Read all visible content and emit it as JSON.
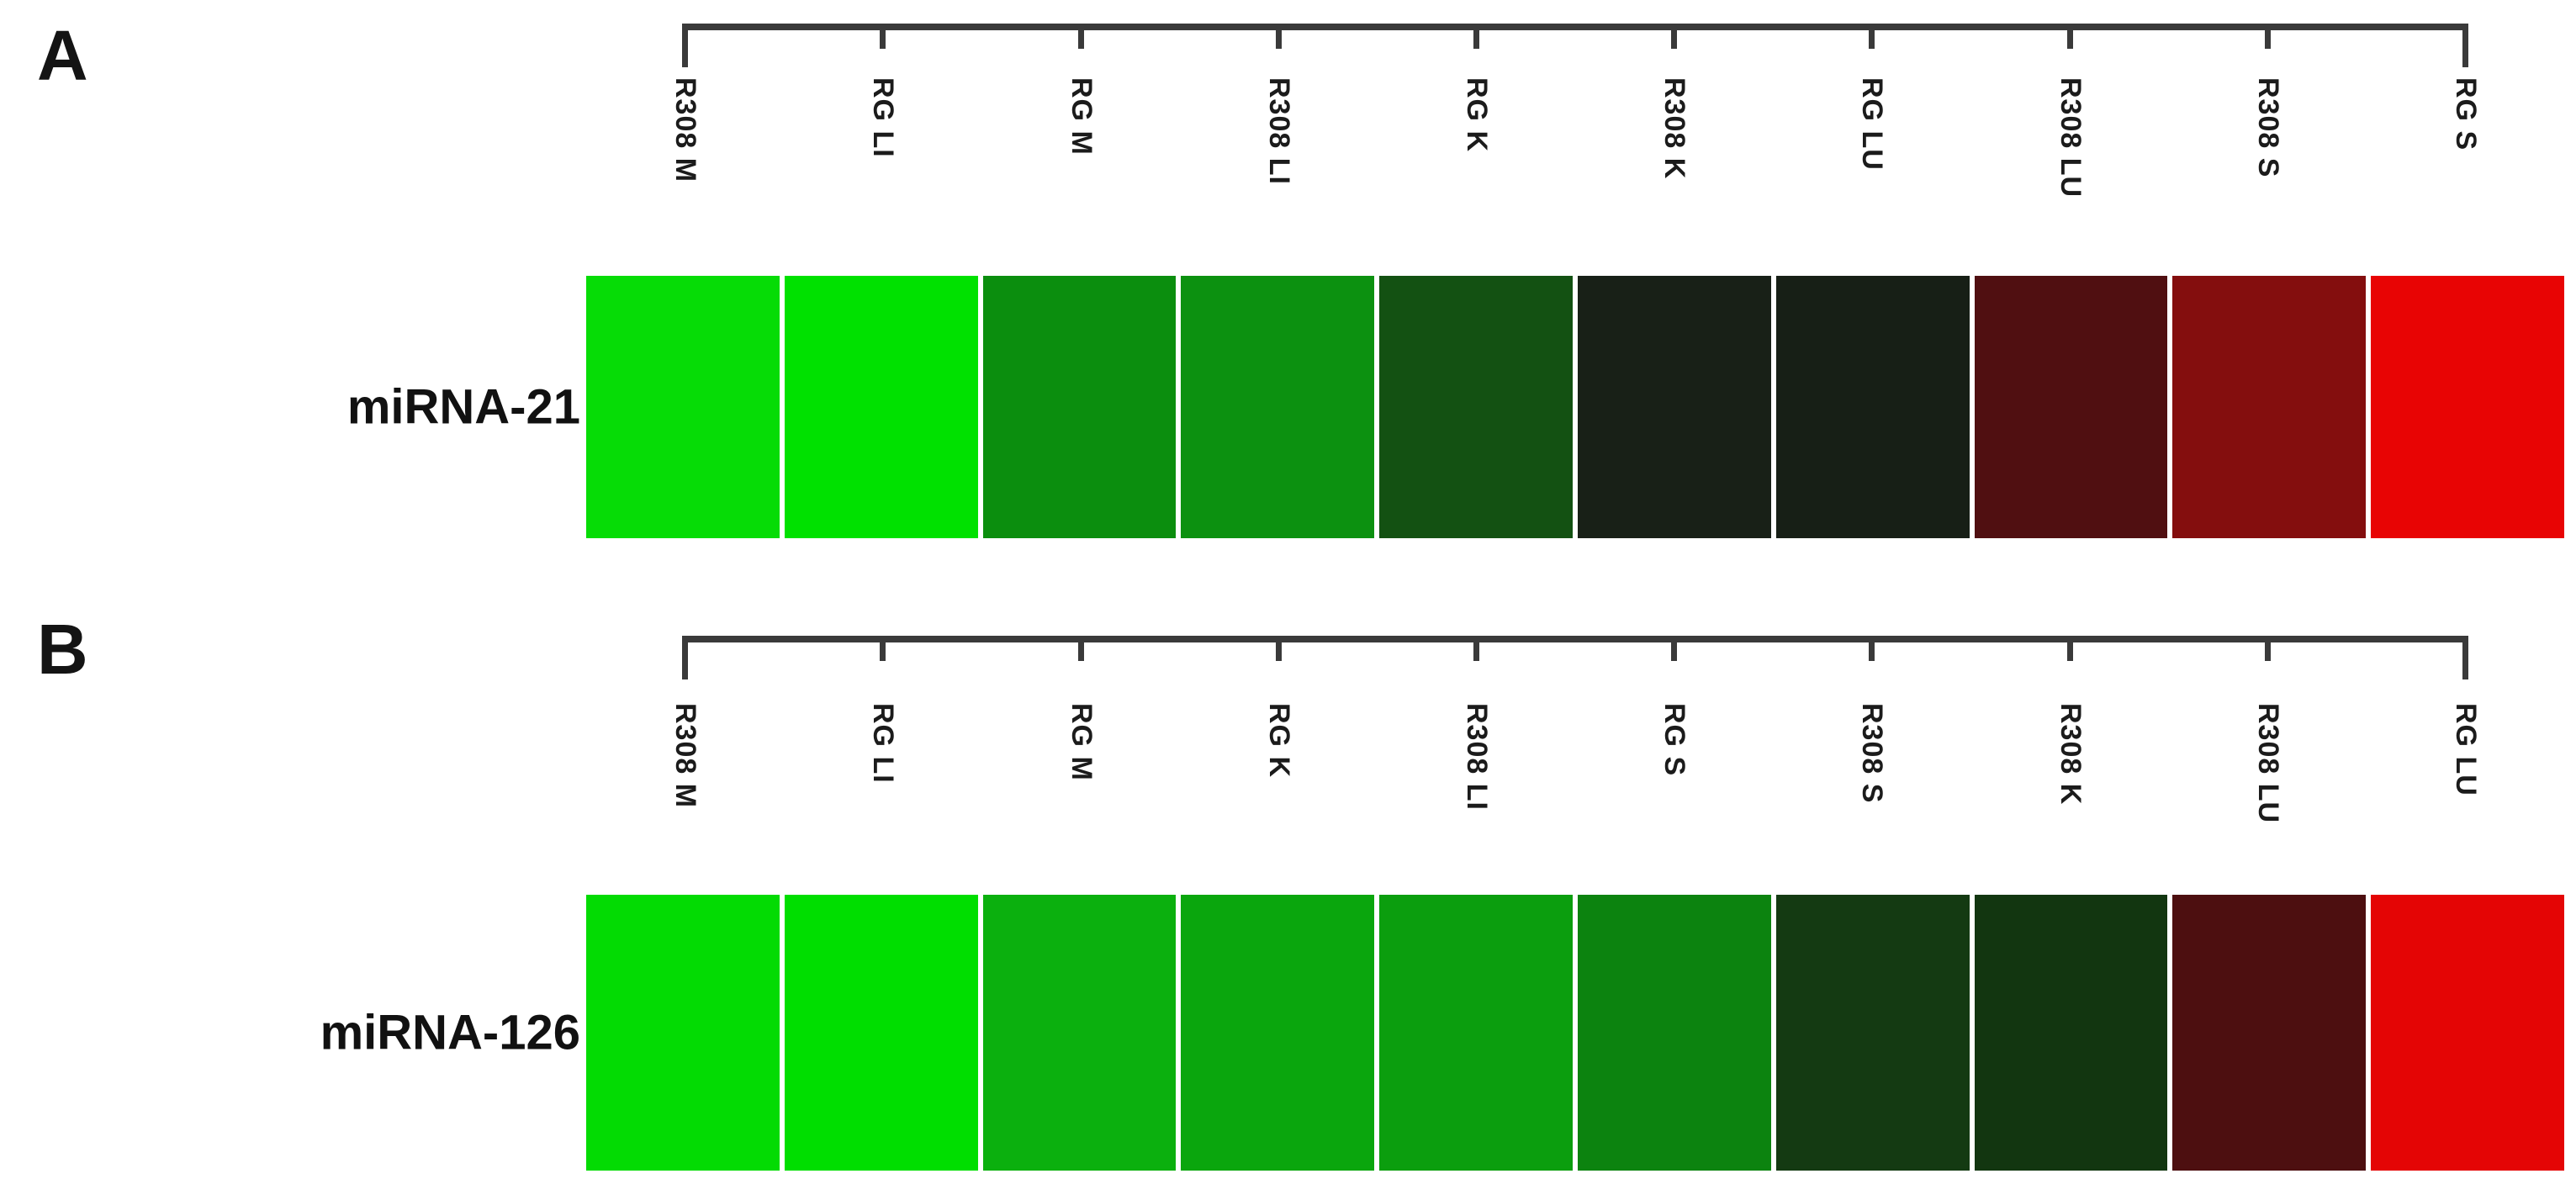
{
  "chart_data": [
    {
      "type": "heatmap",
      "panel_letter": "A",
      "row": "miRNA-21",
      "columns": [
        "R308 M",
        "RG LI",
        "RG M",
        "R308 LI",
        "RG K",
        "R308 K",
        "RG LU",
        "R308 LU",
        "R308 S",
        "RG S"
      ],
      "cell_colors": [
        "#06DC06",
        "#00E100",
        "#0B8E0E",
        "#0C9110",
        "#135112",
        "#182017",
        "#171F16",
        "#500F11",
        "#840E0E",
        "#E80404"
      ]
    },
    {
      "type": "heatmap",
      "panel_letter": "B",
      "row": "miRNA-126",
      "columns": [
        "R308 M",
        "RG LI",
        "RG M",
        "RG K",
        "R308 LI",
        "RG S",
        "R308 S",
        "R308 K",
        "R308 LU",
        "RG LU"
      ],
      "cell_colors": [
        "#03DB03",
        "#00DE00",
        "#0BB00E",
        "#0AA60D",
        "#0B9E0E",
        "#0C830F",
        "#143A12",
        "#123610",
        "#4D0F10",
        "#E40505"
      ]
    }
  ]
}
